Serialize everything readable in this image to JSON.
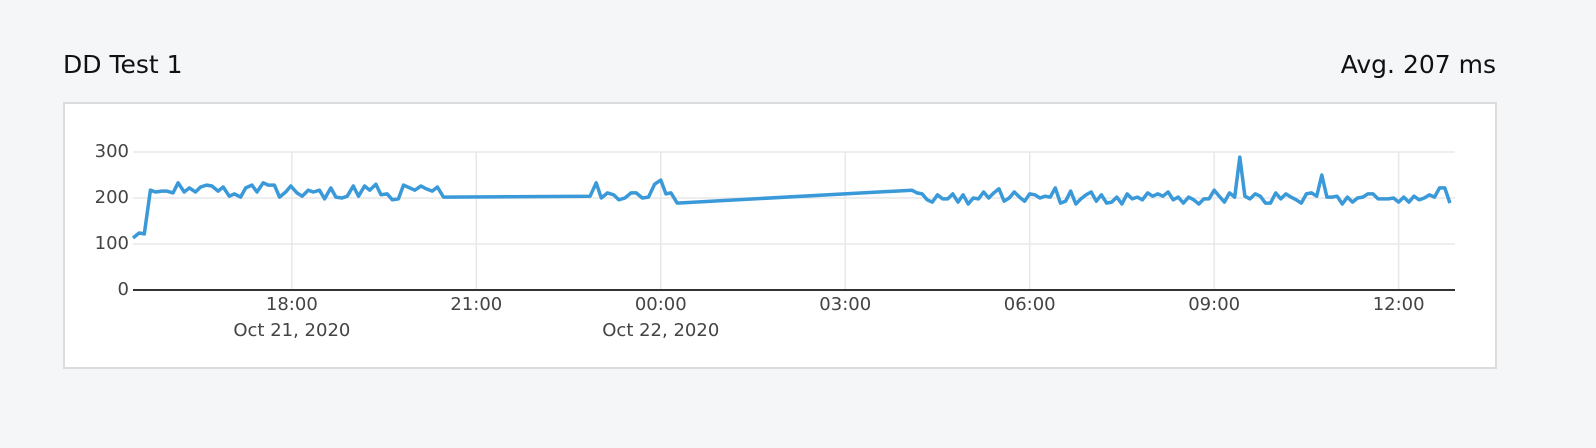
{
  "chart_data": {
    "type": "line",
    "title": "DD Test 1",
    "summary": "Avg. 207 ms",
    "color": "#3a99d8",
    "x": [
      "2020-10-21T15:25",
      "2020-10-21T15:31",
      "2020-10-21T15:36",
      "2020-10-21T15:42",
      "2020-10-21T15:47",
      "2020-10-21T15:53",
      "2020-10-21T15:58",
      "2020-10-21T16:04",
      "2020-10-21T16:09",
      "2020-10-21T16:15",
      "2020-10-21T16:20",
      "2020-10-21T16:26",
      "2020-10-21T16:31",
      "2020-10-21T16:37",
      "2020-10-21T16:42",
      "2020-10-21T16:48",
      "2020-10-21T16:53",
      "2020-10-21T16:59",
      "2020-10-21T17:04",
      "2020-10-21T17:10",
      "2020-10-21T17:15",
      "2020-10-21T17:21",
      "2020-10-21T17:26",
      "2020-10-21T17:32",
      "2020-10-21T17:37",
      "2020-10-21T17:43",
      "2020-10-21T17:48",
      "2020-10-21T17:54",
      "2020-10-21T17:59",
      "2020-10-21T18:05",
      "2020-10-21T18:10",
      "2020-10-21T18:16",
      "2020-10-21T18:21",
      "2020-10-21T18:27",
      "2020-10-21T18:32",
      "2020-10-21T18:38",
      "2020-10-21T18:43",
      "2020-10-21T18:49",
      "2020-10-21T18:54",
      "2020-10-21T19:00",
      "2020-10-21T19:05",
      "2020-10-21T19:11",
      "2020-10-21T19:16",
      "2020-10-21T19:22",
      "2020-10-21T19:27",
      "2020-10-21T19:33",
      "2020-10-21T19:38",
      "2020-10-21T19:44",
      "2020-10-21T19:49",
      "2020-10-21T19:55",
      "2020-10-21T20:00",
      "2020-10-21T20:06",
      "2020-10-21T20:11",
      "2020-10-21T20:17",
      "2020-10-21T20:22",
      "2020-10-21T20:28",
      "2020-10-21T22:51",
      "2020-10-21T22:57",
      "2020-10-21T23:02",
      "2020-10-21T23:08",
      "2020-10-21T23:14",
      "2020-10-21T23:19",
      "2020-10-21T23:25",
      "2020-10-21T23:31",
      "2020-10-21T23:36",
      "2020-10-21T23:42",
      "2020-10-21T23:48",
      "2020-10-21T23:54",
      "2020-10-22T00:00",
      "2020-10-22T00:05",
      "2020-10-22T00:10",
      "2020-10-22T00:16",
      "2020-10-22T04:05",
      "2020-10-22T04:10",
      "2020-10-22T04:15",
      "2020-10-22T04:20",
      "2020-10-22T04:25",
      "2020-10-22T04:30",
      "2020-10-22T04:35",
      "2020-10-22T04:40",
      "2020-10-22T04:45",
      "2020-10-22T04:50",
      "2020-10-22T04:55",
      "2020-10-22T05:00",
      "2020-10-22T05:05",
      "2020-10-22T05:10",
      "2020-10-22T05:15",
      "2020-10-22T05:20",
      "2020-10-22T05:25",
      "2020-10-22T05:30",
      "2020-10-22T05:35",
      "2020-10-22T05:40",
      "2020-10-22T05:45",
      "2020-10-22T05:50",
      "2020-10-22T05:55",
      "2020-10-22T06:00",
      "2020-10-22T06:05",
      "2020-10-22T06:10",
      "2020-10-22T06:15",
      "2020-10-22T06:20",
      "2020-10-22T06:25",
      "2020-10-22T06:30",
      "2020-10-22T06:35",
      "2020-10-22T06:40",
      "2020-10-22T06:45",
      "2020-10-22T06:50",
      "2020-10-22T06:55",
      "2020-10-22T07:00",
      "2020-10-22T07:05",
      "2020-10-22T07:10",
      "2020-10-22T07:15",
      "2020-10-22T07:20",
      "2020-10-22T07:25",
      "2020-10-22T07:30",
      "2020-10-22T07:35",
      "2020-10-22T07:40",
      "2020-10-22T07:45",
      "2020-10-22T07:50",
      "2020-10-22T07:55",
      "2020-10-22T08:00",
      "2020-10-22T08:05",
      "2020-10-22T08:10",
      "2020-10-22T08:15",
      "2020-10-22T08:20",
      "2020-10-22T08:25",
      "2020-10-22T08:30",
      "2020-10-22T08:35",
      "2020-10-22T08:40",
      "2020-10-22T08:45",
      "2020-10-22T08:50",
      "2020-10-22T08:55",
      "2020-10-22T09:00",
      "2020-10-22T09:05",
      "2020-10-22T09:10",
      "2020-10-22T09:15",
      "2020-10-22T09:20",
      "2020-10-22T09:25",
      "2020-10-22T09:30",
      "2020-10-22T09:35",
      "2020-10-22T09:40",
      "2020-10-22T09:45",
      "2020-10-22T09:50",
      "2020-10-22T09:55",
      "2020-10-22T10:00",
      "2020-10-22T10:05",
      "2020-10-22T10:10",
      "2020-10-22T10:15",
      "2020-10-22T10:20",
      "2020-10-22T10:25",
      "2020-10-22T10:30",
      "2020-10-22T10:35",
      "2020-10-22T10:40",
      "2020-10-22T10:45",
      "2020-10-22T10:50",
      "2020-10-22T10:55",
      "2020-10-22T11:00",
      "2020-10-22T11:05",
      "2020-10-22T11:10",
      "2020-10-22T11:15",
      "2020-10-22T11:20",
      "2020-10-22T11:25",
      "2020-10-22T11:30",
      "2020-10-22T11:35",
      "2020-10-22T11:40",
      "2020-10-22T11:45",
      "2020-10-22T11:50",
      "2020-10-22T11:55",
      "2020-10-22T12:00",
      "2020-10-22T12:05",
      "2020-10-22T12:10",
      "2020-10-22T12:15",
      "2020-10-22T12:20",
      "2020-10-22T12:25",
      "2020-10-22T12:30",
      "2020-10-22T12:35",
      "2020-10-22T12:40",
      "2020-10-22T12:45",
      "2020-10-22T12:50"
    ],
    "values": [
      113,
      124,
      122,
      217,
      213,
      215,
      215,
      211,
      233,
      213,
      222,
      213,
      224,
      228,
      226,
      215,
      224,
      204,
      209,
      202,
      222,
      228,
      213,
      233,
      228,
      228,
      202,
      213,
      226,
      211,
      204,
      217,
      213,
      217,
      198,
      222,
      202,
      200,
      204,
      226,
      204,
      226,
      217,
      230,
      207,
      209,
      196,
      198,
      228,
      222,
      217,
      226,
      220,
      215,
      224,
      202,
      204,
      233,
      200,
      211,
      207,
      196,
      200,
      211,
      211,
      200,
      202,
      230,
      239,
      209,
      211,
      189,
      217,
      211,
      209,
      196,
      191,
      207,
      198,
      198,
      209,
      191,
      207,
      187,
      200,
      198,
      213,
      200,
      211,
      220,
      193,
      200,
      213,
      202,
      193,
      209,
      207,
      200,
      204,
      202,
      222,
      189,
      193,
      215,
      187,
      198,
      207,
      213,
      193,
      207,
      189,
      191,
      202,
      187,
      209,
      198,
      202,
      196,
      211,
      204,
      209,
      204,
      213,
      196,
      202,
      189,
      202,
      196,
      187,
      198,
      198,
      217,
      204,
      191,
      211,
      202,
      289,
      204,
      198,
      209,
      204,
      189,
      189,
      211,
      198,
      209,
      202,
      196,
      189,
      209,
      211,
      204,
      250,
      202,
      202,
      204,
      187,
      202,
      191,
      200,
      202,
      209,
      209,
      198,
      198,
      198,
      200,
      191,
      202,
      191,
      204,
      196,
      200,
      207,
      202,
      222,
      222,
      189
    ],
    "xlim": [
      "2020-10-21T15:25",
      "2020-10-22T12:55"
    ],
    "xticks": [
      {
        "value": "2020-10-21T18:00",
        "label": "18:00"
      },
      {
        "value": "2020-10-21T21:00",
        "label": "21:00"
      },
      {
        "value": "2020-10-22T00:00",
        "label": "00:00"
      },
      {
        "value": "2020-10-22T03:00",
        "label": "03:00"
      },
      {
        "value": "2020-10-22T06:00",
        "label": "06:00"
      },
      {
        "value": "2020-10-22T09:00",
        "label": "09:00"
      },
      {
        "value": "2020-10-22T12:00",
        "label": "12:00"
      }
    ],
    "xtick_dates": [
      {
        "value": "2020-10-21T18:00",
        "label": "Oct 21, 2020"
      },
      {
        "value": "2020-10-22T00:00",
        "label": "Oct 22, 2020"
      }
    ],
    "ylim": [
      0,
      300
    ],
    "yticks": [
      0,
      100,
      200,
      300
    ],
    "grid": true
  }
}
